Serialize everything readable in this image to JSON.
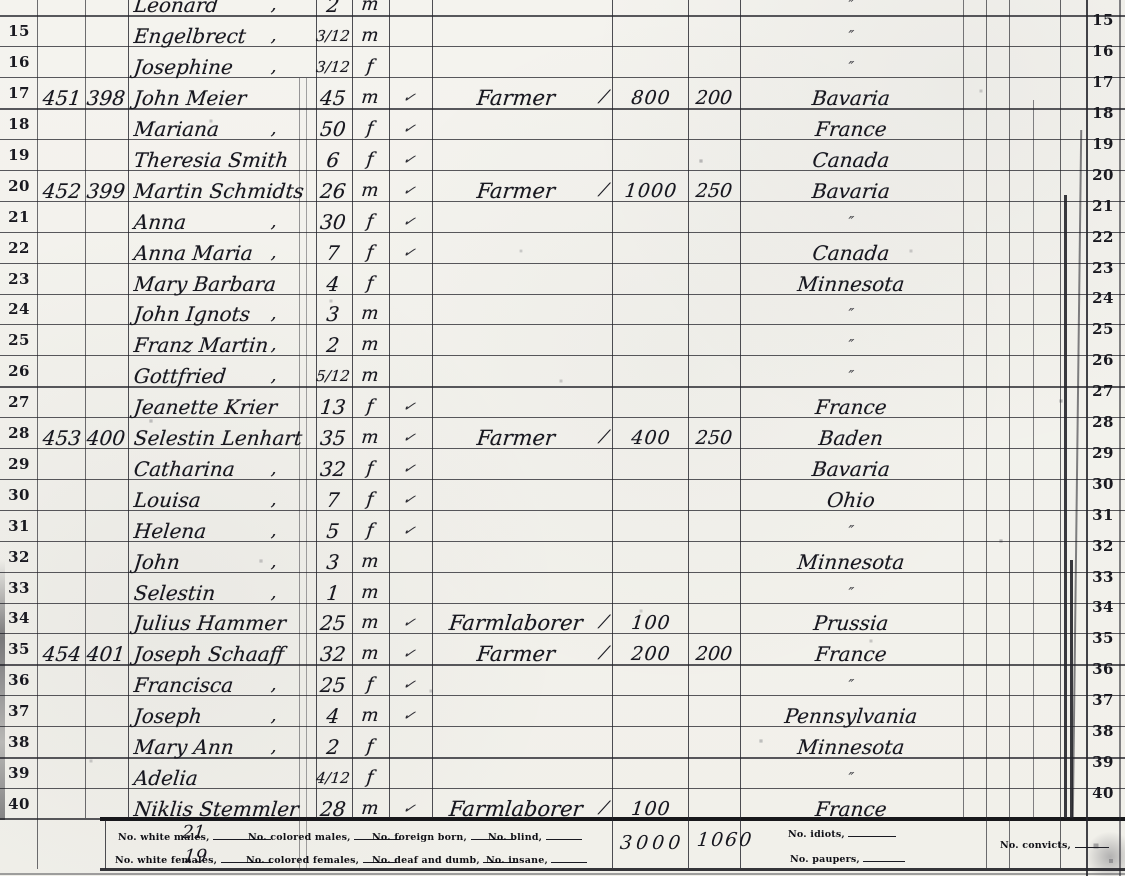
{
  "page": {
    "title": "census-ledger-page",
    "ink_color": "#17171f",
    "paper_color": "#f4f3ee",
    "rows": [
      {
        "left": "",
        "right": "",
        "dwelling": "",
        "family": "",
        "name": "Leonard",
        "name_ditto": true,
        "age": "2",
        "sex": "m",
        "check": false,
        "occupation": "",
        "occ_check": false,
        "real": "",
        "personal": "",
        "birthplace": "″"
      },
      {
        "left": "15",
        "right": "15",
        "dwelling": "",
        "family": "",
        "name": "Engelbrect",
        "name_ditto": true,
        "age": "3/12",
        "sex": "m",
        "check": false,
        "occupation": "",
        "occ_check": false,
        "real": "",
        "personal": "",
        "birthplace": "″"
      },
      {
        "left": "16",
        "right": "16",
        "dwelling": "",
        "family": "",
        "name": "Josephine",
        "name_ditto": true,
        "age": "3/12",
        "sex": "f",
        "check": false,
        "occupation": "",
        "occ_check": false,
        "real": "",
        "personal": "",
        "birthplace": "″"
      },
      {
        "left": "17",
        "right": "17",
        "dwelling": "451",
        "family": "398",
        "name": "John Meier",
        "name_ditto": false,
        "age": "45",
        "sex": "m",
        "check": true,
        "occupation": "Farmer",
        "occ_check": true,
        "real": "800",
        "personal": "200",
        "birthplace": "Bavaria"
      },
      {
        "left": "18",
        "right": "18",
        "dwelling": "",
        "family": "",
        "name": "Mariana",
        "name_ditto": true,
        "age": "50",
        "sex": "f",
        "check": true,
        "occupation": "",
        "occ_check": false,
        "real": "",
        "personal": "",
        "birthplace": "France"
      },
      {
        "left": "19",
        "right": "19",
        "dwelling": "",
        "family": "",
        "name": "Theresia Smith",
        "name_ditto": false,
        "age": "6",
        "sex": "f",
        "check": true,
        "occupation": "",
        "occ_check": false,
        "real": "",
        "personal": "",
        "birthplace": "Canada"
      },
      {
        "left": "20",
        "right": "20",
        "dwelling": "452",
        "family": "399",
        "name": "Martin Schmidts",
        "name_ditto": false,
        "age": "26",
        "sex": "m",
        "check": true,
        "occupation": "Farmer",
        "occ_check": true,
        "real": "1000",
        "personal": "250",
        "birthplace": "Bavaria"
      },
      {
        "left": "21",
        "right": "21",
        "dwelling": "",
        "family": "",
        "name": "Anna",
        "name_ditto": true,
        "age": "30",
        "sex": "f",
        "check": true,
        "occupation": "",
        "occ_check": false,
        "real": "",
        "personal": "",
        "birthplace": "″"
      },
      {
        "left": "22",
        "right": "22",
        "dwelling": "",
        "family": "",
        "name": "Anna Maria",
        "name_ditto": true,
        "age": "7",
        "sex": "f",
        "check": true,
        "occupation": "",
        "occ_check": false,
        "real": "",
        "personal": "",
        "birthplace": "Canada"
      },
      {
        "left": "23",
        "right": "23",
        "dwelling": "",
        "family": "",
        "name": "Mary Barbara",
        "name_ditto": false,
        "age": "4",
        "sex": "f",
        "check": false,
        "occupation": "",
        "occ_check": false,
        "real": "",
        "personal": "",
        "birthplace": "Minnesota"
      },
      {
        "left": "24",
        "right": "24",
        "dwelling": "",
        "family": "",
        "name": "John Ignots",
        "name_ditto": true,
        "age": "3",
        "sex": "m",
        "check": false,
        "occupation": "",
        "occ_check": false,
        "real": "",
        "personal": "",
        "birthplace": "″"
      },
      {
        "left": "25",
        "right": "25",
        "dwelling": "",
        "family": "",
        "name": "Franz Martin",
        "name_ditto": true,
        "age": "2",
        "sex": "m",
        "check": false,
        "occupation": "",
        "occ_check": false,
        "real": "",
        "personal": "",
        "birthplace": "″"
      },
      {
        "left": "26",
        "right": "26",
        "dwelling": "",
        "family": "",
        "name": "Gottfried",
        "name_ditto": true,
        "age": "5/12",
        "sex": "m",
        "check": false,
        "occupation": "",
        "occ_check": false,
        "real": "",
        "personal": "",
        "birthplace": "″"
      },
      {
        "left": "27",
        "right": "27",
        "dwelling": "",
        "family": "",
        "name": "Jeanette Krier",
        "name_ditto": false,
        "age": "13",
        "sex": "f",
        "check": true,
        "occupation": "",
        "occ_check": false,
        "real": "",
        "personal": "",
        "birthplace": "France"
      },
      {
        "left": "28",
        "right": "28",
        "dwelling": "453",
        "family": "400",
        "name": "Selestin Lenhart",
        "name_ditto": false,
        "age": "35",
        "sex": "m",
        "check": true,
        "occupation": "Farmer",
        "occ_check": true,
        "real": "400",
        "personal": "250",
        "birthplace": "Baden"
      },
      {
        "left": "29",
        "right": "29",
        "dwelling": "",
        "family": "",
        "name": "Catharina",
        "name_ditto": true,
        "age": "32",
        "sex": "f",
        "check": true,
        "occupation": "",
        "occ_check": false,
        "real": "",
        "personal": "",
        "birthplace": "Bavaria"
      },
      {
        "left": "30",
        "right": "30",
        "dwelling": "",
        "family": "",
        "name": "Louisa",
        "name_ditto": true,
        "age": "7",
        "sex": "f",
        "check": true,
        "occupation": "",
        "occ_check": false,
        "real": "",
        "personal": "",
        "birthplace": "Ohio"
      },
      {
        "left": "31",
        "right": "31",
        "dwelling": "",
        "family": "",
        "name": "Helena",
        "name_ditto": true,
        "age": "5",
        "sex": "f",
        "check": true,
        "occupation": "",
        "occ_check": false,
        "real": "",
        "personal": "",
        "birthplace": "″"
      },
      {
        "left": "32",
        "right": "32",
        "dwelling": "",
        "family": "",
        "name": "John",
        "name_ditto": true,
        "age": "3",
        "sex": "m",
        "check": false,
        "occupation": "",
        "occ_check": false,
        "real": "",
        "personal": "",
        "birthplace": "Minnesota"
      },
      {
        "left": "33",
        "right": "33",
        "dwelling": "",
        "family": "",
        "name": "Selestin",
        "name_ditto": true,
        "age": "1",
        "sex": "m",
        "check": false,
        "occupation": "",
        "occ_check": false,
        "real": "",
        "personal": "",
        "birthplace": "″"
      },
      {
        "left": "34",
        "right": "34",
        "dwelling": "",
        "family": "",
        "name": "Julius Hammer",
        "name_ditto": false,
        "age": "25",
        "sex": "m",
        "check": true,
        "occupation": "Farmlaborer",
        "occ_check": true,
        "real": "100",
        "personal": "",
        "birthplace": "Prussia"
      },
      {
        "left": "35",
        "right": "35",
        "dwelling": "454",
        "family": "401",
        "name": "Joseph Schaaff",
        "name_ditto": false,
        "age": "32",
        "sex": "m",
        "check": true,
        "occupation": "Farmer",
        "occ_check": true,
        "real": "200",
        "personal": "200",
        "birthplace": "France"
      },
      {
        "left": "36",
        "right": "36",
        "dwelling": "",
        "family": "",
        "name": "Francisca",
        "name_ditto": true,
        "age": "25",
        "sex": "f",
        "check": true,
        "occupation": "",
        "occ_check": false,
        "real": "",
        "personal": "",
        "birthplace": "″"
      },
      {
        "left": "37",
        "right": "37",
        "dwelling": "",
        "family": "",
        "name": "Joseph",
        "name_ditto": true,
        "age": "4",
        "sex": "m",
        "check": true,
        "occupation": "",
        "occ_check": false,
        "real": "",
        "personal": "",
        "birthplace": "Pennsylvania"
      },
      {
        "left": "38",
        "right": "38",
        "dwelling": "",
        "family": "",
        "name": "Mary Ann",
        "name_ditto": true,
        "age": "2",
        "sex": "f",
        "check": false,
        "occupation": "",
        "occ_check": false,
        "real": "",
        "personal": "",
        "birthplace": "Minnesota"
      },
      {
        "left": "39",
        "right": "39",
        "dwelling": "",
        "family": "",
        "name": "Adelia",
        "name_ditto": false,
        "age": "4/12",
        "sex": "f",
        "check": false,
        "occupation": "",
        "occ_check": false,
        "real": "",
        "personal": "",
        "birthplace": "″"
      },
      {
        "left": "40",
        "right": "40",
        "dwelling": "",
        "family": "",
        "name": "Niklis Stemmler",
        "name_ditto": false,
        "age": "28",
        "sex": "m",
        "check": true,
        "occupation": "Farmlaborer",
        "occ_check": true,
        "real": "100",
        "personal": "",
        "birthplace": "France"
      }
    ],
    "marks": {
      "check_glyph": "✓",
      "occupation_check_glyph": "⁄",
      "name_ditto_glyph": ",",
      "birthplace_ditto_glyph": "″"
    },
    "footer": {
      "white_males_label": "No. white males,",
      "white_males_value": "21",
      "colored_males_label": "No. colored males,",
      "foreign_born_label": "No. foreign born,",
      "blind_label": "No. blind,",
      "white_females_label": "No. white females,",
      "white_females_value": "19",
      "colored_females_label": "No. colored females,",
      "deaf_dumb_label": "No. deaf and dumb,",
      "insane_label": "No. insane,",
      "idiots_label": "No. idiots,",
      "paupers_label": "No. paupers,",
      "convicts_label": "No. convicts,",
      "real_estate_total": "3000",
      "personal_estate_total": "1060"
    }
  }
}
